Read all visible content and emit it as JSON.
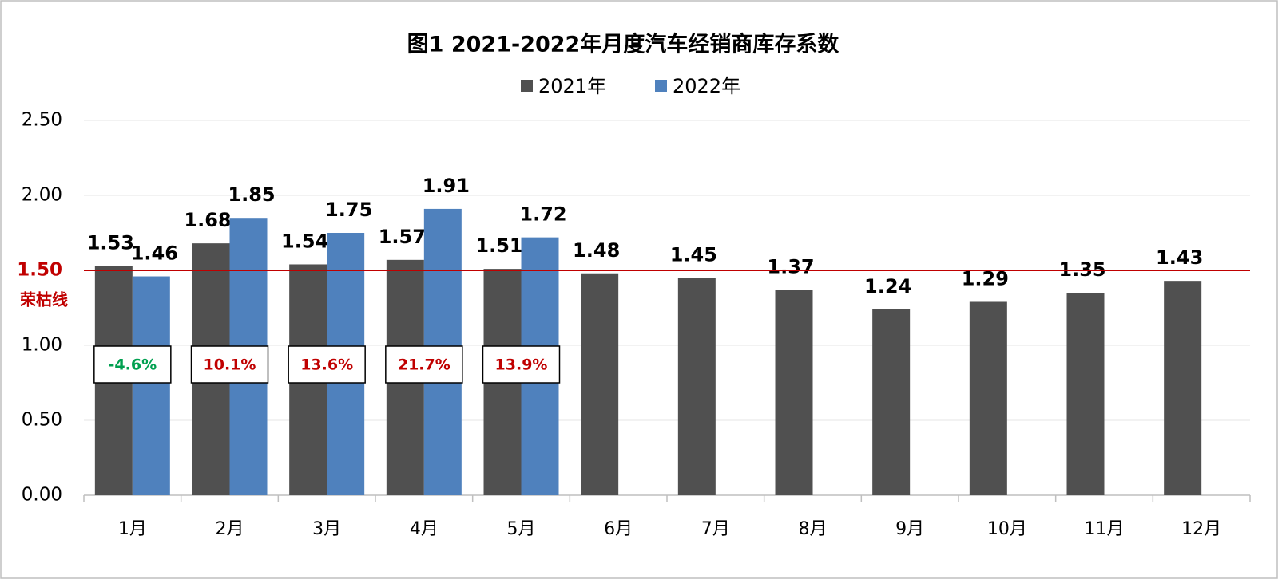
{
  "chart_data": {
    "type": "bar",
    "title": "图1  2021-2022年月度汽车经销商库存系数",
    "categories": [
      "1月",
      "2月",
      "3月",
      "4月",
      "5月",
      "6月",
      "7月",
      "8月",
      "9月",
      "10月",
      "11月",
      "12月"
    ],
    "series": [
      {
        "name": "2021年",
        "color": "#505050",
        "values": [
          1.53,
          1.68,
          1.54,
          1.57,
          1.51,
          1.48,
          1.45,
          1.37,
          1.24,
          1.29,
          1.35,
          1.43
        ]
      },
      {
        "name": "2022年",
        "color": "#4f81bd",
        "values": [
          1.46,
          1.85,
          1.75,
          1.91,
          1.72,
          null,
          null,
          null,
          null,
          null,
          null,
          null
        ]
      }
    ],
    "ylim": [
      0,
      2.5
    ],
    "yticks": [
      {
        "value": 0,
        "label": "0.00"
      },
      {
        "value": 0.5,
        "label": "0.50"
      },
      {
        "value": 1,
        "label": "1.00"
      },
      {
        "value": 1.5,
        "label": "1.50"
      },
      {
        "value": 2,
        "label": "2.00"
      },
      {
        "value": 2.5,
        "label": "2.50"
      }
    ],
    "grid": true,
    "legend": "top",
    "reference_line": {
      "value": 1.5,
      "label": "荣枯线",
      "color": "#c00000"
    },
    "yoy_change": {
      "values": [
        -4.6,
        10.1,
        13.6,
        21.7,
        13.9
      ],
      "value_labels": [
        "-4.6%",
        "10.1%",
        "13.6%",
        "21.7%",
        "13.9%"
      ],
      "positive_color": "#c00000",
      "negative_color": "#00a050"
    }
  }
}
